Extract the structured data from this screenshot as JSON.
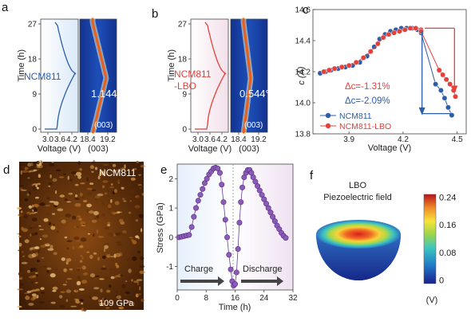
{
  "panels": {
    "a": "a",
    "b": "b",
    "c": "c",
    "d": "d",
    "e": "e",
    "f": "f"
  },
  "panel_a": {
    "ylabel": "Time (h)",
    "xlabel_left": "Voltage (V)",
    "xlabel_right": "(003)",
    "yticks": [
      "0",
      "9",
      "18",
      "27"
    ],
    "xticks_left": [
      "3.0",
      "3.6",
      "4.2"
    ],
    "xticks_right": [
      "18.4",
      "19.2"
    ],
    "sample": "NCM811",
    "angle": "1.144°",
    "peak": "(003)",
    "color": "#2b5da8"
  },
  "panel_b": {
    "ylabel": "Time (h)",
    "xlabel_left": "Voltage (V)",
    "xlabel_right": "(003)",
    "yticks": [
      "0",
      "9",
      "18",
      "27"
    ],
    "xticks_left": [
      "3.0",
      "3.6",
      "4.2"
    ],
    "xticks_right": [
      "18.4",
      "19.2"
    ],
    "sample_line1": "NCM811",
    "sample_line2": "-LBO",
    "angle": "0.544°",
    "peak": "(003)",
    "color": "#e5403a"
  },
  "panel_d": {
    "sample": "NCM811",
    "scale": "109 GPa"
  },
  "panel_f": {
    "title_line1": "LBO",
    "title_line2": "Piezoelectric field",
    "colorbar_ticks": [
      "0.24",
      "0.16",
      "0.08",
      "0"
    ],
    "unit": "(V)"
  },
  "chart_data": [
    {
      "id": "c",
      "type": "line",
      "xlabel": "Voltage (V)",
      "ylabel": "c (Å)",
      "xlim": [
        3.7,
        4.55
      ],
      "ylim": [
        13.8,
        14.6
      ],
      "xticks": [
        3.9,
        4.2,
        4.5
      ],
      "yticks": [
        13.8,
        14.0,
        14.2,
        14.4,
        14.6
      ],
      "annotations": [
        "Δc=-1.31%",
        "Δc=-2.09%"
      ],
      "series": [
        {
          "name": "NCM811",
          "color": "#2b5da8",
          "x": [
            3.74,
            3.77,
            3.8,
            3.84,
            3.88,
            3.92,
            3.96,
            4.0,
            4.04,
            4.07,
            4.1,
            4.13,
            4.16,
            4.19,
            4.22,
            4.25,
            4.28,
            4.3,
            4.3,
            4.38,
            4.41,
            4.43,
            4.45,
            4.47
          ],
          "y": [
            14.19,
            14.2,
            14.21,
            14.22,
            14.23,
            14.24,
            14.26,
            14.3,
            14.36,
            14.41,
            14.44,
            14.46,
            14.47,
            14.48,
            14.48,
            14.48,
            14.47,
            14.46,
            14.45,
            14.12,
            14.08,
            14.03,
            13.97,
            13.92
          ]
        },
        {
          "name": "NCM811-LBO",
          "color": "#e5403a",
          "x": [
            3.76,
            3.79,
            3.82,
            3.86,
            3.9,
            3.94,
            3.98,
            4.02,
            4.06,
            4.09,
            4.12,
            4.15,
            4.18,
            4.21,
            4.24,
            4.27,
            4.3,
            4.3,
            4.4,
            4.42,
            4.44,
            4.46,
            4.48,
            4.49
          ],
          "y": [
            14.2,
            14.21,
            14.22,
            14.23,
            14.24,
            14.26,
            14.29,
            14.33,
            14.38,
            14.42,
            14.44,
            14.45,
            14.46,
            14.47,
            14.48,
            14.48,
            14.47,
            14.46,
            14.21,
            14.18,
            14.15,
            14.12,
            14.08,
            14.04
          ]
        }
      ]
    },
    {
      "id": "e",
      "type": "line",
      "xlabel": "Time (h)",
      "ylabel": "Stress (GPa)",
      "xlim": [
        0,
        32
      ],
      "ylim": [
        -1.8,
        2.5
      ],
      "xticks": [
        0,
        8,
        16,
        24,
        32
      ],
      "yticks": [
        -1,
        0,
        1,
        2
      ],
      "annotations": [
        "Charge",
        "Discharge"
      ],
      "series": [
        {
          "color": "#6a3d9a",
          "x": [
            0.5,
            1.2,
            1.9,
            2.6,
            3.3,
            4.0,
            4.6,
            5.2,
            5.8,
            6.4,
            7.0,
            7.6,
            8.2,
            8.8,
            9.4,
            10.0,
            10.6,
            11.2,
            11.8,
            12.3,
            12.8,
            13.3,
            13.8,
            14.3,
            14.8,
            15.2,
            15.6,
            16.0,
            16.4,
            16.8,
            17.2,
            17.6,
            18.0,
            18.5,
            19.0,
            19.5,
            20.0,
            20.5,
            21.0,
            21.6,
            22.2,
            22.8,
            23.4,
            24.0,
            24.6,
            25.2,
            25.8,
            26.4,
            27.0,
            27.6,
            28.2,
            28.8,
            29.4,
            30.0
          ],
          "y": [
            0.0,
            0.02,
            0.04,
            0.06,
            0.08,
            0.35,
            0.7,
            1.0,
            1.25,
            1.45,
            1.65,
            1.85,
            2.0,
            2.15,
            2.25,
            2.35,
            2.38,
            2.35,
            2.2,
            1.8,
            1.2,
            0.6,
            0.0,
            -0.6,
            -1.1,
            -1.5,
            -1.65,
            -1.6,
            -1.2,
            -0.4,
            0.5,
            1.2,
            1.7,
            2.05,
            2.2,
            2.3,
            2.3,
            2.2,
            2.05,
            1.9,
            1.75,
            1.6,
            1.45,
            1.3,
            1.15,
            1.0,
            0.85,
            0.7,
            0.55,
            0.4,
            0.28,
            0.15,
            0.05,
            -0.02
          ]
        }
      ]
    }
  ]
}
